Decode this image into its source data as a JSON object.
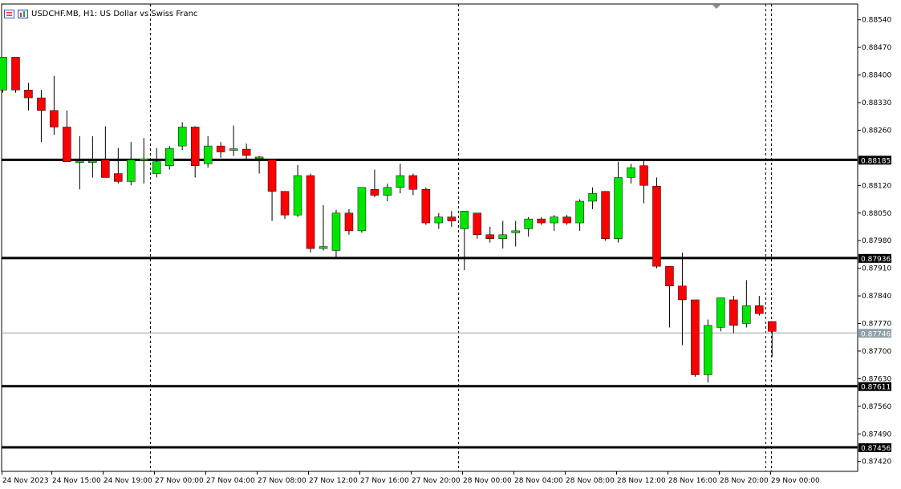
{
  "header": {
    "title": "USDCHF.MB, H1:  US Dollar vs Swiss Franc"
  },
  "colors": {
    "bull": "#00e600",
    "bear": "#ff0000",
    "outline": "#000000",
    "grid_separator": "#000000",
    "current_price_line": "#8fa0a8"
  },
  "chart_data": {
    "type": "candlestick",
    "symbol": "USDCHF.MB",
    "timeframe": "H1",
    "ylim": [
      0.87395,
      0.8858
    ],
    "y_ticks": [
      "0.88540",
      "0.88470",
      "0.88400",
      "0.88330",
      "0.88260",
      "0.88120",
      "0.88050",
      "0.87980",
      "0.87910",
      "0.87840",
      "0.87770",
      "0.87700",
      "0.87630",
      "0.87560",
      "0.87490",
      "0.87420"
    ],
    "x_labels": [
      "24 Nov 2023",
      "24 Nov 15:00",
      "24 Nov 19:00",
      "27 Nov 00:00",
      "27 Nov 04:00",
      "27 Nov 08:00",
      "27 Nov 12:00",
      "27 Nov 16:00",
      "27 Nov 20:00",
      "28 Nov 00:00",
      "28 Nov 04:00",
      "28 Nov 08:00",
      "28 Nov 12:00",
      "28 Nov 16:00",
      "28 Nov 20:00",
      "29 Nov 00:00"
    ],
    "day_separators_after_candle": [
      11,
      35,
      59
    ],
    "horizontal_levels": [
      {
        "value": 0.88185,
        "label": "0.88185"
      },
      {
        "value": 0.87936,
        "label": "0.87936"
      },
      {
        "value": 0.87611,
        "label": "0.87611"
      },
      {
        "value": 0.87456,
        "label": "0.87456"
      }
    ],
    "current_price": {
      "value": 0.87746,
      "label": "0.87746"
    },
    "candles": [
      {
        "o": 0.88362,
        "h": 0.88445,
        "l": 0.88355,
        "c": 0.88445
      },
      {
        "o": 0.88445,
        "h": 0.88445,
        "l": 0.88355,
        "c": 0.88362
      },
      {
        "o": 0.88362,
        "h": 0.8838,
        "l": 0.8831,
        "c": 0.88342
      },
      {
        "o": 0.88342,
        "h": 0.88362,
        "l": 0.8823,
        "c": 0.8831
      },
      {
        "o": 0.8831,
        "h": 0.88398,
        "l": 0.88248,
        "c": 0.88268
      },
      {
        "o": 0.88268,
        "h": 0.8831,
        "l": 0.8818,
        "c": 0.8818
      },
      {
        "o": 0.8818,
        "h": 0.88245,
        "l": 0.8811,
        "c": 0.8818
      },
      {
        "o": 0.8818,
        "h": 0.88245,
        "l": 0.8814,
        "c": 0.8818
      },
      {
        "o": 0.88185,
        "h": 0.8827,
        "l": 0.8814,
        "c": 0.8814
      },
      {
        "o": 0.8815,
        "h": 0.88215,
        "l": 0.88125,
        "c": 0.8813
      },
      {
        "o": 0.8813,
        "h": 0.8823,
        "l": 0.8812,
        "c": 0.88185
      },
      {
        "o": 0.88185,
        "h": 0.8824,
        "l": 0.88125,
        "c": 0.88185
      },
      {
        "o": 0.8815,
        "h": 0.88215,
        "l": 0.8814,
        "c": 0.8818
      },
      {
        "o": 0.8817,
        "h": 0.8822,
        "l": 0.8816,
        "c": 0.88214
      },
      {
        "o": 0.8822,
        "h": 0.8828,
        "l": 0.8821,
        "c": 0.88268
      },
      {
        "o": 0.88268,
        "h": 0.8827,
        "l": 0.8814,
        "c": 0.8817
      },
      {
        "o": 0.88175,
        "h": 0.88245,
        "l": 0.88165,
        "c": 0.8822
      },
      {
        "o": 0.8822,
        "h": 0.8823,
        "l": 0.8819,
        "c": 0.88205
      },
      {
        "o": 0.8821,
        "h": 0.88272,
        "l": 0.88195,
        "c": 0.88212
      },
      {
        "o": 0.88212,
        "h": 0.88226,
        "l": 0.88186,
        "c": 0.88196
      },
      {
        "o": 0.88188,
        "h": 0.88195,
        "l": 0.8815,
        "c": 0.88192
      },
      {
        "o": 0.88185,
        "h": 0.88185,
        "l": 0.8803,
        "c": 0.88105
      },
      {
        "o": 0.88105,
        "h": 0.88105,
        "l": 0.88035,
        "c": 0.88045
      },
      {
        "o": 0.88045,
        "h": 0.88172,
        "l": 0.8804,
        "c": 0.88145
      },
      {
        "o": 0.88145,
        "h": 0.8815,
        "l": 0.8795,
        "c": 0.8796
      },
      {
        "o": 0.8796,
        "h": 0.8807,
        "l": 0.87955,
        "c": 0.87965
      },
      {
        "o": 0.87955,
        "h": 0.88058,
        "l": 0.87935,
        "c": 0.8805
      },
      {
        "o": 0.8805,
        "h": 0.8806,
        "l": 0.87995,
        "c": 0.88005
      },
      {
        "o": 0.88005,
        "h": 0.88115,
        "l": 0.88,
        "c": 0.88115
      },
      {
        "o": 0.8811,
        "h": 0.8816,
        "l": 0.8809,
        "c": 0.88095
      },
      {
        "o": 0.88095,
        "h": 0.88125,
        "l": 0.8808,
        "c": 0.88115
      },
      {
        "o": 0.88115,
        "h": 0.88175,
        "l": 0.881,
        "c": 0.88145
      },
      {
        "o": 0.88145,
        "h": 0.8815,
        "l": 0.88095,
        "c": 0.8811
      },
      {
        "o": 0.8811,
        "h": 0.88115,
        "l": 0.8802,
        "c": 0.88025
      },
      {
        "o": 0.88025,
        "h": 0.8805,
        "l": 0.8801,
        "c": 0.8804
      },
      {
        "o": 0.8804,
        "h": 0.88055,
        "l": 0.88015,
        "c": 0.8803
      },
      {
        "o": 0.8801,
        "h": 0.88055,
        "l": 0.87905,
        "c": 0.88055
      },
      {
        "o": 0.8805,
        "h": 0.8805,
        "l": 0.87985,
        "c": 0.87995
      },
      {
        "o": 0.87995,
        "h": 0.88015,
        "l": 0.87975,
        "c": 0.87985
      },
      {
        "o": 0.87985,
        "h": 0.8803,
        "l": 0.8796,
        "c": 0.87995
      },
      {
        "o": 0.88,
        "h": 0.8803,
        "l": 0.87965,
        "c": 0.88005
      },
      {
        "o": 0.8801,
        "h": 0.8804,
        "l": 0.8799,
        "c": 0.88035
      },
      {
        "o": 0.88035,
        "h": 0.8804,
        "l": 0.8802,
        "c": 0.88025
      },
      {
        "o": 0.88025,
        "h": 0.88045,
        "l": 0.88005,
        "c": 0.8804
      },
      {
        "o": 0.8804,
        "h": 0.88045,
        "l": 0.8802,
        "c": 0.88025
      },
      {
        "o": 0.88025,
        "h": 0.88085,
        "l": 0.88005,
        "c": 0.8808
      },
      {
        "o": 0.8808,
        "h": 0.88115,
        "l": 0.8806,
        "c": 0.881
      },
      {
        "o": 0.88105,
        "h": 0.88105,
        "l": 0.8798,
        "c": 0.87985
      },
      {
        "o": 0.87985,
        "h": 0.8818,
        "l": 0.87975,
        "c": 0.8814
      },
      {
        "o": 0.8814,
        "h": 0.88175,
        "l": 0.88125,
        "c": 0.88165
      },
      {
        "o": 0.8817,
        "h": 0.88185,
        "l": 0.88075,
        "c": 0.8812
      },
      {
        "o": 0.88118,
        "h": 0.8814,
        "l": 0.8791,
        "c": 0.87915
      },
      {
        "o": 0.87915,
        "h": 0.87915,
        "l": 0.8776,
        "c": 0.87865
      },
      {
        "o": 0.87865,
        "h": 0.8795,
        "l": 0.87715,
        "c": 0.8783
      },
      {
        "o": 0.8783,
        "h": 0.8783,
        "l": 0.87635,
        "c": 0.8764
      },
      {
        "o": 0.8764,
        "h": 0.8778,
        "l": 0.8762,
        "c": 0.87765
      },
      {
        "o": 0.8776,
        "h": 0.87835,
        "l": 0.8775,
        "c": 0.87835
      },
      {
        "o": 0.8783,
        "h": 0.8784,
        "l": 0.87745,
        "c": 0.87765
      },
      {
        "o": 0.8777,
        "h": 0.8788,
        "l": 0.8776,
        "c": 0.87815
      },
      {
        "o": 0.87815,
        "h": 0.8784,
        "l": 0.8779,
        "c": 0.87795
      },
      {
        "o": 0.87775,
        "h": 0.87775,
        "l": 0.87685,
        "c": 0.8775
      }
    ]
  }
}
